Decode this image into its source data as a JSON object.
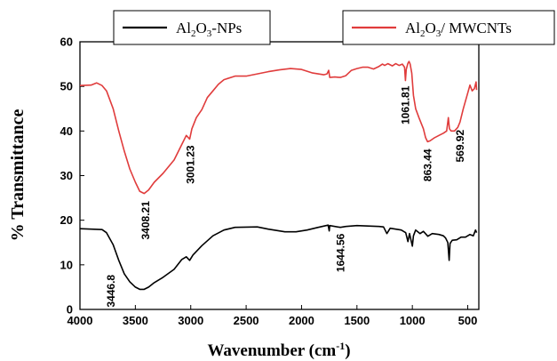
{
  "chart_data": {
    "type": "line",
    "xlabel": "Wavenumber (cm",
    "xlabel_sup": "-1",
    "xlabel_end": ")",
    "ylabel": "% Transmittance",
    "xlim": [
      4000,
      400
    ],
    "ylim": [
      0,
      60
    ],
    "x_reversed": true,
    "x_ticks": [
      4000,
      3500,
      3000,
      2500,
      2000,
      1500,
      1000,
      500
    ],
    "y_ticks": [
      0,
      10,
      20,
      30,
      40,
      50,
      60
    ],
    "grid": false,
    "legend_placement": "top",
    "series": [
      {
        "name": "Al2O3-NPs",
        "legend_parts": [
          [
            "Al",
            ""
          ],
          [
            "2",
            "sub"
          ],
          [
            "O",
            ""
          ],
          [
            "3",
            "sub"
          ],
          [
            "-NPs",
            ""
          ]
        ],
        "color": "#000000",
        "points": [
          [
            4000,
            18.1
          ],
          [
            3900,
            18.0
          ],
          [
            3800,
            17.9
          ],
          [
            3760,
            17.2
          ],
          [
            3700,
            14.5
          ],
          [
            3650,
            11.0
          ],
          [
            3600,
            8.0
          ],
          [
            3550,
            6.2
          ],
          [
            3500,
            5.0
          ],
          [
            3460,
            4.5
          ],
          [
            3420,
            4.5
          ],
          [
            3380,
            5.0
          ],
          [
            3330,
            6.0
          ],
          [
            3250,
            7.2
          ],
          [
            3150,
            9.0
          ],
          [
            3080,
            11.2
          ],
          [
            3040,
            11.8
          ],
          [
            3010,
            11.0
          ],
          [
            2980,
            12.2
          ],
          [
            2900,
            14.3
          ],
          [
            2800,
            16.5
          ],
          [
            2700,
            17.8
          ],
          [
            2600,
            18.4
          ],
          [
            2400,
            18.5
          ],
          [
            2300,
            18.0
          ],
          [
            2150,
            17.4
          ],
          [
            2050,
            17.4
          ],
          [
            1950,
            17.8
          ],
          [
            1850,
            18.4
          ],
          [
            1760,
            18.9
          ],
          [
            1750,
            17.6
          ],
          [
            1745,
            18.8
          ],
          [
            1650,
            18.4
          ],
          [
            1600,
            18.6
          ],
          [
            1500,
            18.8
          ],
          [
            1400,
            18.7
          ],
          [
            1300,
            18.6
          ],
          [
            1260,
            18.5
          ],
          [
            1230,
            17.0
          ],
          [
            1200,
            18.2
          ],
          [
            1100,
            17.8
          ],
          [
            1060,
            17.2
          ],
          [
            1040,
            15.2
          ],
          [
            1025,
            17.0
          ],
          [
            1000,
            14.2
          ],
          [
            990,
            16.5
          ],
          [
            970,
            17.8
          ],
          [
            930,
            17.0
          ],
          [
            900,
            17.5
          ],
          [
            860,
            16.4
          ],
          [
            820,
            17.0
          ],
          [
            760,
            16.8
          ],
          [
            720,
            16.5
          ],
          [
            700,
            16.0
          ],
          [
            680,
            15.0
          ],
          [
            668,
            11.0
          ],
          [
            660,
            14.8
          ],
          [
            640,
            15.5
          ],
          [
            600,
            15.6
          ],
          [
            560,
            16.2
          ],
          [
            520,
            16.2
          ],
          [
            480,
            16.8
          ],
          [
            450,
            16.5
          ],
          [
            430,
            17.8
          ],
          [
            420,
            17.2
          ]
        ]
      },
      {
        "name": "Al2O3/ MWCNTs",
        "legend_parts": [
          [
            "Al",
            ""
          ],
          [
            "2",
            "sub"
          ],
          [
            "O",
            ""
          ],
          [
            "3",
            "sub"
          ],
          [
            "/ MWCNTs",
            ""
          ]
        ],
        "color": "#e03c3c",
        "points": [
          [
            4000,
            50.2
          ],
          [
            3900,
            50.3
          ],
          [
            3850,
            50.8
          ],
          [
            3800,
            50.2
          ],
          [
            3760,
            49.0
          ],
          [
            3700,
            45.0
          ],
          [
            3650,
            40.0
          ],
          [
            3600,
            35.5
          ],
          [
            3550,
            31.5
          ],
          [
            3500,
            28.5
          ],
          [
            3460,
            26.5
          ],
          [
            3420,
            26.0
          ],
          [
            3380,
            26.8
          ],
          [
            3330,
            28.5
          ],
          [
            3250,
            30.5
          ],
          [
            3150,
            33.5
          ],
          [
            3080,
            37.0
          ],
          [
            3040,
            39.0
          ],
          [
            3010,
            38.2
          ],
          [
            2990,
            40.5
          ],
          [
            2950,
            43.0
          ],
          [
            2900,
            44.8
          ],
          [
            2850,
            47.5
          ],
          [
            2800,
            49.0
          ],
          [
            2750,
            50.5
          ],
          [
            2700,
            51.5
          ],
          [
            2600,
            52.3
          ],
          [
            2500,
            52.3
          ],
          [
            2400,
            52.8
          ],
          [
            2300,
            53.3
          ],
          [
            2200,
            53.7
          ],
          [
            2100,
            54.0
          ],
          [
            2000,
            53.8
          ],
          [
            1900,
            53.0
          ],
          [
            1800,
            52.6
          ],
          [
            1770,
            52.8
          ],
          [
            1755,
            53.6
          ],
          [
            1745,
            52.0
          ],
          [
            1700,
            52.1
          ],
          [
            1650,
            52.0
          ],
          [
            1600,
            52.4
          ],
          [
            1550,
            53.6
          ],
          [
            1500,
            54.0
          ],
          [
            1450,
            54.3
          ],
          [
            1400,
            54.3
          ],
          [
            1350,
            53.9
          ],
          [
            1300,
            54.5
          ],
          [
            1270,
            55.0
          ],
          [
            1250,
            54.7
          ],
          [
            1220,
            55.1
          ],
          [
            1180,
            54.6
          ],
          [
            1150,
            55.1
          ],
          [
            1120,
            54.7
          ],
          [
            1090,
            55.0
          ],
          [
            1070,
            54.3
          ],
          [
            1062,
            51.3
          ],
          [
            1055,
            53.8
          ],
          [
            1040,
            55.2
          ],
          [
            1030,
            55.6
          ],
          [
            1020,
            55.0
          ],
          [
            1005,
            53.0
          ],
          [
            990,
            48.0
          ],
          [
            970,
            45.0
          ],
          [
            940,
            43.0
          ],
          [
            900,
            40.5
          ],
          [
            880,
            38.5
          ],
          [
            863,
            37.6
          ],
          [
            840,
            37.8
          ],
          [
            800,
            38.5
          ],
          [
            760,
            39.0
          ],
          [
            720,
            39.5
          ],
          [
            690,
            40.0
          ],
          [
            675,
            43.0
          ],
          [
            665,
            40.5
          ],
          [
            650,
            40.0
          ],
          [
            620,
            40.0
          ],
          [
            590,
            40.8
          ],
          [
            570,
            42.0
          ],
          [
            540,
            45.0
          ],
          [
            500,
            48.5
          ],
          [
            480,
            50.3
          ],
          [
            460,
            49.0
          ],
          [
            440,
            49.5
          ],
          [
            425,
            51.0
          ],
          [
            420,
            49.2
          ]
        ]
      }
    ],
    "annotations": [
      {
        "series": 1,
        "text": "3408.21",
        "x": 3408,
        "y": 25.5,
        "offset": "below"
      },
      {
        "series": 1,
        "text": "3001.23",
        "x": 3001,
        "y": 38.0,
        "offset": "below"
      },
      {
        "series": 1,
        "text": "1061.81",
        "x": 1062,
        "y": 51.3,
        "offset": "below"
      },
      {
        "series": 1,
        "text": "863.44",
        "x": 863,
        "y": 37.2,
        "offset": "below"
      },
      {
        "series": 1,
        "text": "569.92",
        "x": 570,
        "y": 41.5,
        "offset": "below"
      },
      {
        "series": 0,
        "text": "3446.8",
        "x": 3720,
        "y": 9.0,
        "offset": "below"
      },
      {
        "series": 0,
        "text": "1644.56",
        "x": 1645,
        "y": 18.2,
        "offset": "below"
      }
    ]
  }
}
